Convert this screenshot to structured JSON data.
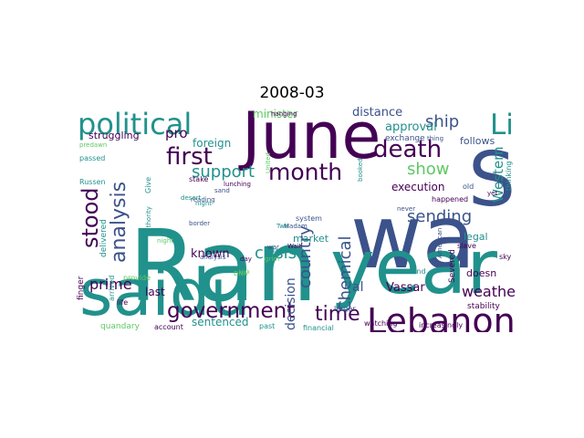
{
  "title": "2008-03",
  "colors": {
    "background": "#ffffff",
    "palette": [
      "#440154",
      "#3b528b",
      "#21918c",
      "#5ec962",
      "#fde725"
    ]
  },
  "words": [
    "Ran",
    "wa",
    "year",
    "saidu",
    "June",
    "S",
    "Lebanon",
    "political",
    "death",
    "month",
    "Li",
    "first",
    "analysis",
    "stood",
    "government",
    "support",
    "time",
    "country",
    "Chemical",
    "show",
    "ship",
    "crisis",
    "sending",
    "weather",
    "Western",
    "prime",
    "known",
    "decision",
    "distance",
    "minister",
    "approval",
    "execution",
    "follows",
    "Vassar",
    "pro",
    "al",
    "sentenced",
    "last",
    "doesn",
    "legal",
    "stability",
    "foreign",
    "market",
    "struggling",
    "analysis",
    "exchange",
    "happened",
    "slave",
    "increasingly",
    "watching",
    "larger",
    "financial",
    "account",
    "quandary",
    "past",
    "delivered",
    "Russen",
    "passed",
    "predawn",
    "provide",
    "finger",
    "life",
    "arrived",
    "thinking",
    "sky",
    "second",
    "Severed",
    "old",
    "Madam",
    "Mavra",
    "system",
    "stake",
    "lunching",
    "reading",
    "sand",
    "desert",
    "border",
    "night",
    "Give",
    "authority",
    "hanging",
    "United",
    "booked",
    "never",
    "yet",
    "thing",
    "night",
    "war",
    "Wait",
    "grim",
    "day",
    "DNA",
    "kick",
    "Two",
    "American"
  ]
}
